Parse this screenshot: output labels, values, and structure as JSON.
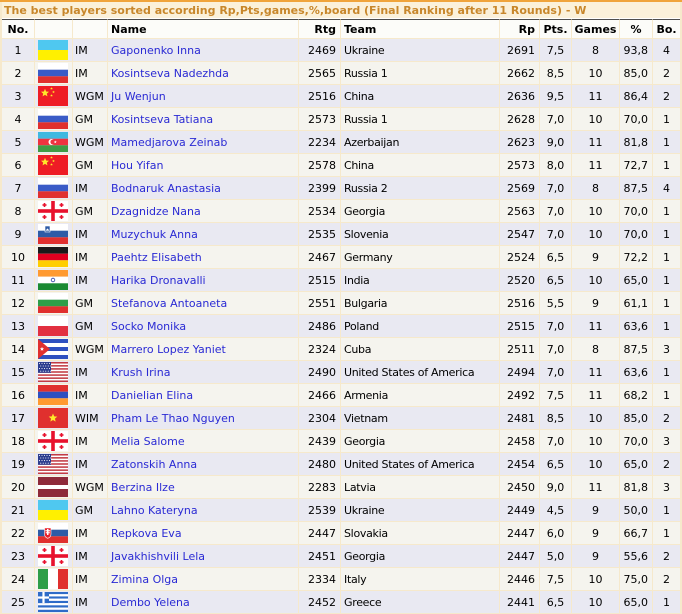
{
  "title": "The best players sorted according Rp,Pts,games,%,board (Final Ranking after 11 Rounds) - W",
  "columns": {
    "no": "No.",
    "flag": "",
    "title": "",
    "name": "Name",
    "rtg": "Rtg",
    "team": "Team",
    "rp": "Rp",
    "pts": "Pts.",
    "games": "Games",
    "pct": "%",
    "bo": "Bo."
  },
  "colors": {
    "accent_orange": "#F0A43B",
    "title_text": "#C8872B",
    "title_bar_bg": "#FBF1DA",
    "header_bg": "#FCFCF9",
    "header_border_dark": "#4E4E4E",
    "link_blue": "#2A2AD4",
    "row_odd": "#E9E9F2",
    "row_even": "#F5F4EE",
    "border_cream": "#F6E9CC"
  },
  "players": [
    {
      "no": 1,
      "flag": "ukraine",
      "title": "IM",
      "name": "Gaponenko Inna",
      "rtg": 2469,
      "team": "Ukraine",
      "rp": 2691,
      "pts": "7,5",
      "games": 8,
      "pct": "93,8",
      "bo": 4
    },
    {
      "no": 2,
      "flag": "russia",
      "title": "IM",
      "name": "Kosintseva Nadezhda",
      "rtg": 2565,
      "team": "Russia 1",
      "rp": 2662,
      "pts": "8,5",
      "games": 10,
      "pct": "85,0",
      "bo": 2
    },
    {
      "no": 3,
      "flag": "china",
      "title": "WGM",
      "name": "Ju Wenjun",
      "rtg": 2516,
      "team": "China",
      "rp": 2636,
      "pts": "9,5",
      "games": 11,
      "pct": "86,4",
      "bo": 2
    },
    {
      "no": 4,
      "flag": "russia",
      "title": "GM",
      "name": "Kosintseva Tatiana",
      "rtg": 2573,
      "team": "Russia 1",
      "rp": 2628,
      "pts": "7,0",
      "games": 10,
      "pct": "70,0",
      "bo": 1
    },
    {
      "no": 5,
      "flag": "azerbaijan",
      "title": "WGM",
      "name": "Mamedjarova Zeinab",
      "rtg": 2234,
      "team": "Azerbaijan",
      "rp": 2623,
      "pts": "9,0",
      "games": 11,
      "pct": "81,8",
      "bo": 1
    },
    {
      "no": 6,
      "flag": "china",
      "title": "GM",
      "name": "Hou Yifan",
      "rtg": 2578,
      "team": "China",
      "rp": 2573,
      "pts": "8,0",
      "games": 11,
      "pct": "72,7",
      "bo": 1
    },
    {
      "no": 7,
      "flag": "russia",
      "title": "IM",
      "name": "Bodnaruk Anastasia",
      "rtg": 2399,
      "team": "Russia 2",
      "rp": 2569,
      "pts": "7,0",
      "games": 8,
      "pct": "87,5",
      "bo": 4
    },
    {
      "no": 8,
      "flag": "georgia",
      "title": "GM",
      "name": "Dzagnidze Nana",
      "rtg": 2534,
      "team": "Georgia",
      "rp": 2563,
      "pts": "7,0",
      "games": 10,
      "pct": "70,0",
      "bo": 1
    },
    {
      "no": 9,
      "flag": "slovenia",
      "title": "IM",
      "name": "Muzychuk Anna",
      "rtg": 2535,
      "team": "Slovenia",
      "rp": 2547,
      "pts": "7,0",
      "games": 10,
      "pct": "70,0",
      "bo": 1
    },
    {
      "no": 10,
      "flag": "germany",
      "title": "IM",
      "name": "Paehtz Elisabeth",
      "rtg": 2467,
      "team": "Germany",
      "rp": 2524,
      "pts": "6,5",
      "games": 9,
      "pct": "72,2",
      "bo": 1
    },
    {
      "no": 11,
      "flag": "india",
      "title": "IM",
      "name": "Harika Dronavalli",
      "rtg": 2515,
      "team": "India",
      "rp": 2520,
      "pts": "6,5",
      "games": 10,
      "pct": "65,0",
      "bo": 1
    },
    {
      "no": 12,
      "flag": "bulgaria",
      "title": "GM",
      "name": "Stefanova Antoaneta",
      "rtg": 2551,
      "team": "Bulgaria",
      "rp": 2516,
      "pts": "5,5",
      "games": 9,
      "pct": "61,1",
      "bo": 1
    },
    {
      "no": 13,
      "flag": "poland",
      "title": "GM",
      "name": "Socko Monika",
      "rtg": 2486,
      "team": "Poland",
      "rp": 2515,
      "pts": "7,0",
      "games": 11,
      "pct": "63,6",
      "bo": 1
    },
    {
      "no": 14,
      "flag": "cuba",
      "title": "WGM",
      "name": "Marrero Lopez Yaniet",
      "rtg": 2324,
      "team": "Cuba",
      "rp": 2511,
      "pts": "7,0",
      "games": 8,
      "pct": "87,5",
      "bo": 3
    },
    {
      "no": 15,
      "flag": "usa",
      "title": "IM",
      "name": "Krush Irina",
      "rtg": 2490,
      "team": "United States of America",
      "rp": 2494,
      "pts": "7,0",
      "games": 11,
      "pct": "63,6",
      "bo": 1
    },
    {
      "no": 16,
      "flag": "armenia",
      "title": "IM",
      "name": "Danielian Elina",
      "rtg": 2466,
      "team": "Armenia",
      "rp": 2492,
      "pts": "7,5",
      "games": 11,
      "pct": "68,2",
      "bo": 1
    },
    {
      "no": 17,
      "flag": "vietnam",
      "title": "WIM",
      "name": "Pham Le Thao Nguyen",
      "rtg": 2304,
      "team": "Vietnam",
      "rp": 2481,
      "pts": "8,5",
      "games": 10,
      "pct": "85,0",
      "bo": 2
    },
    {
      "no": 18,
      "flag": "georgia",
      "title": "IM",
      "name": "Melia Salome",
      "rtg": 2439,
      "team": "Georgia",
      "rp": 2458,
      "pts": "7,0",
      "games": 10,
      "pct": "70,0",
      "bo": 3
    },
    {
      "no": 19,
      "flag": "usa",
      "title": "IM",
      "name": "Zatonskih Anna",
      "rtg": 2480,
      "team": "United States of America",
      "rp": 2454,
      "pts": "6,5",
      "games": 10,
      "pct": "65,0",
      "bo": 2
    },
    {
      "no": 20,
      "flag": "latvia",
      "title": "WGM",
      "name": "Berzina Ilze",
      "rtg": 2283,
      "team": "Latvia",
      "rp": 2450,
      "pts": "9,0",
      "games": 11,
      "pct": "81,8",
      "bo": 3
    },
    {
      "no": 21,
      "flag": "ukraine",
      "title": "GM",
      "name": "Lahno Kateryna",
      "rtg": 2539,
      "team": "Ukraine",
      "rp": 2449,
      "pts": "4,5",
      "games": 9,
      "pct": "50,0",
      "bo": 1
    },
    {
      "no": 22,
      "flag": "slovakia",
      "title": "IM",
      "name": "Repkova Eva",
      "rtg": 2447,
      "team": "Slovakia",
      "rp": 2447,
      "pts": "6,0",
      "games": 9,
      "pct": "66,7",
      "bo": 1
    },
    {
      "no": 23,
      "flag": "georgia",
      "title": "IM",
      "name": "Javakhishvili Lela",
      "rtg": 2451,
      "team": "Georgia",
      "rp": 2447,
      "pts": "5,0",
      "games": 9,
      "pct": "55,6",
      "bo": 2
    },
    {
      "no": 24,
      "flag": "italy",
      "title": "IM",
      "name": "Zimina Olga",
      "rtg": 2334,
      "team": "Italy",
      "rp": 2446,
      "pts": "7,5",
      "games": 10,
      "pct": "75,0",
      "bo": 2
    },
    {
      "no": 25,
      "flag": "greece",
      "title": "IM",
      "name": "Dembo Yelena",
      "rtg": 2452,
      "team": "Greece",
      "rp": 2441,
      "pts": "6,5",
      "games": 10,
      "pct": "65,0",
      "bo": 1
    }
  ]
}
